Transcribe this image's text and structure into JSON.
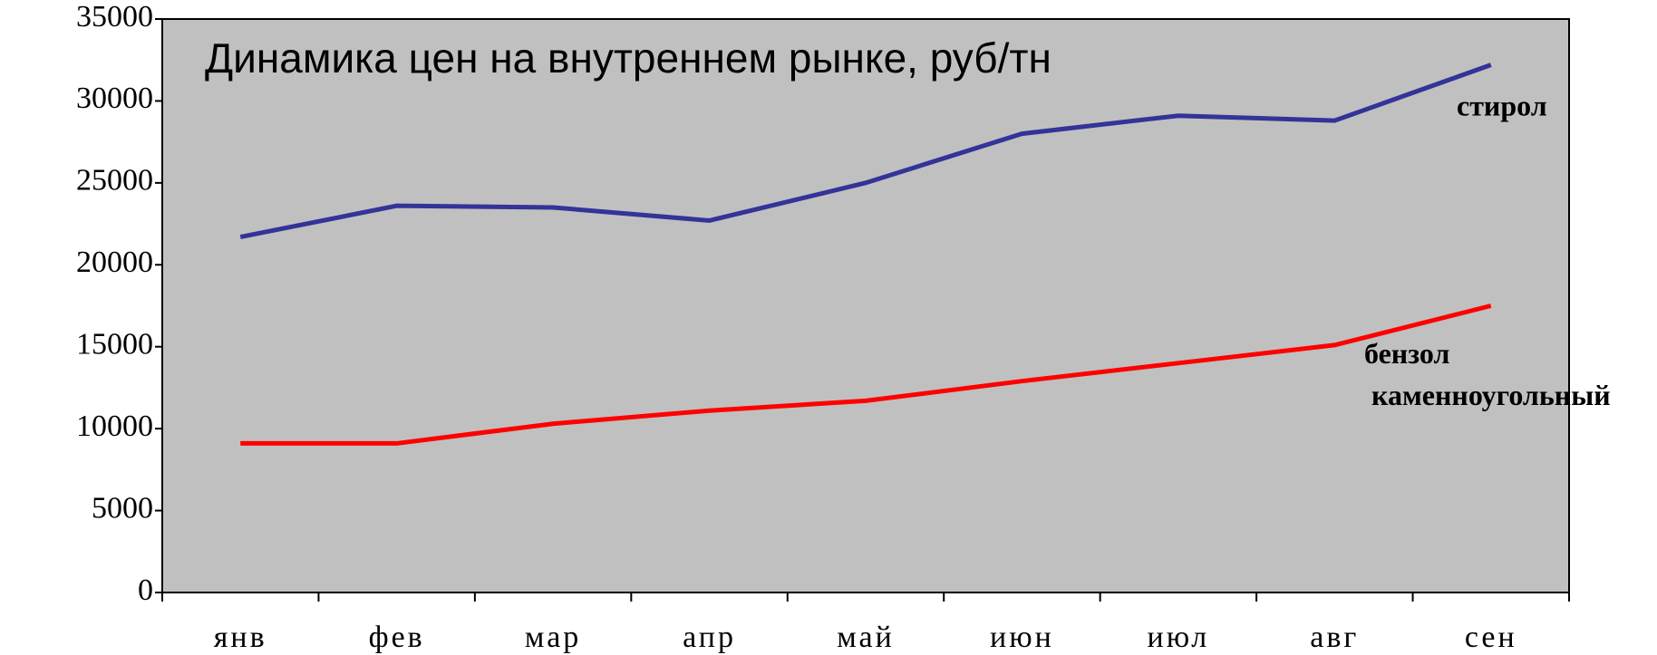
{
  "chart_data": {
    "type": "line",
    "title": "Динамика цен на внутреннем рынке, руб/тн",
    "categories": [
      "янв",
      "фев",
      "мар",
      "апр",
      "май",
      "июн",
      "июл",
      "авг",
      "сен"
    ],
    "series": [
      {
        "name": "стирол",
        "color": "#333399",
        "values": [
          21700,
          23600,
          23500,
          22700,
          25000,
          28000,
          29100,
          28800,
          32200
        ]
      },
      {
        "name": "бензол каменноугольный",
        "color": "#ff0000",
        "values": [
          9100,
          9100,
          10300,
          11100,
          11700,
          12900,
          14000,
          15100,
          17500
        ]
      }
    ],
    "ylim": [
      0,
      35000
    ],
    "yticks": [
      0,
      5000,
      10000,
      15000,
      20000,
      25000,
      30000,
      35000
    ],
    "background": "#c0c0c0"
  }
}
